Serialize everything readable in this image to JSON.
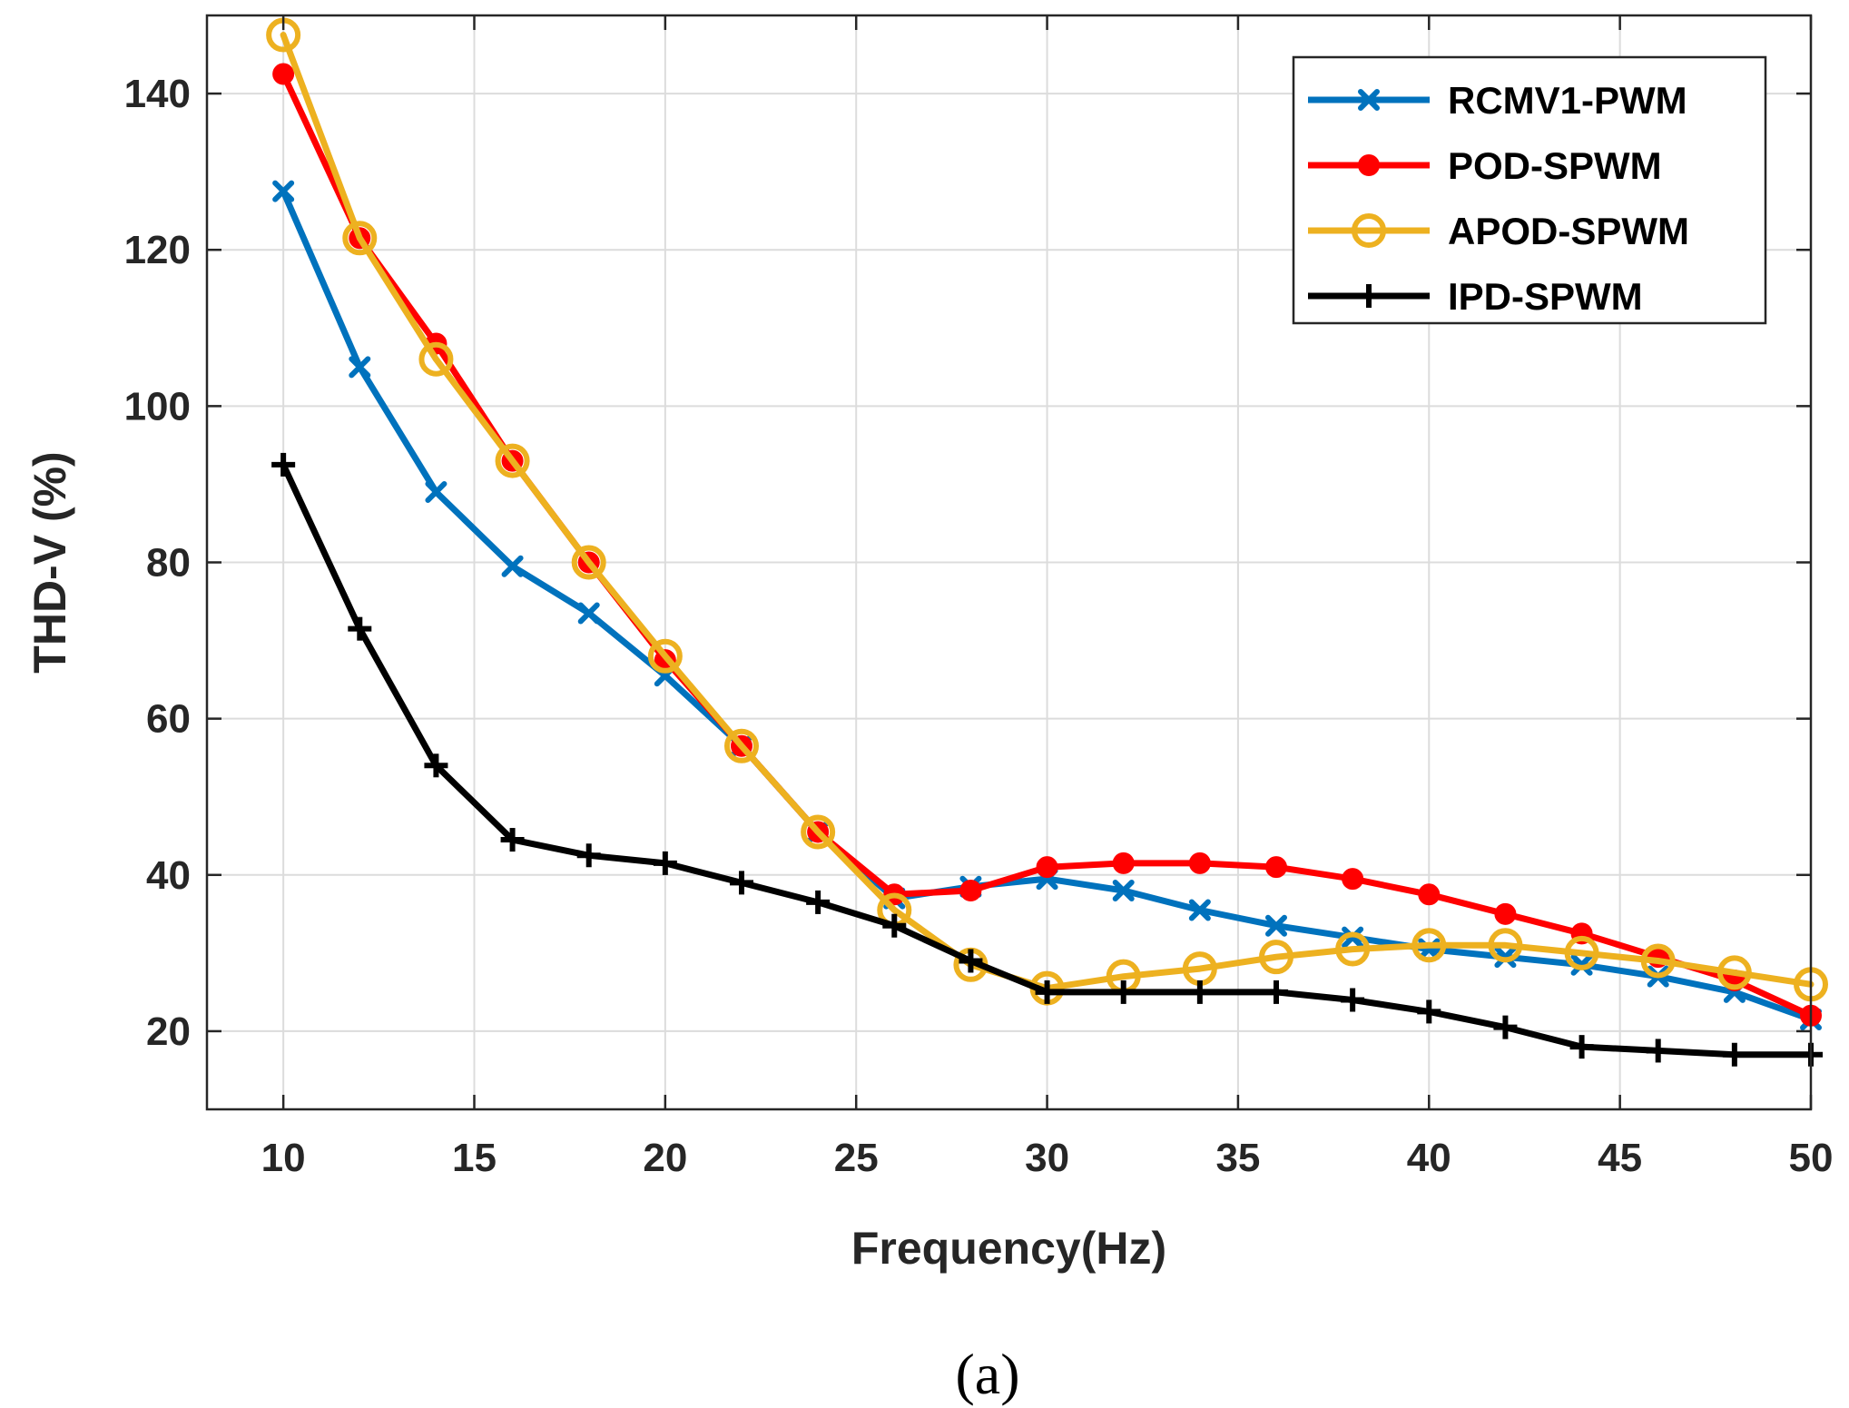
{
  "figure": {
    "caption": "(a)"
  },
  "chart_data": {
    "type": "line",
    "title": "",
    "xlabel": "Frequency(Hz)",
    "ylabel": "THD-V (%)",
    "xlim": [
      8,
      50
    ],
    "ylim": [
      10,
      150
    ],
    "xticks": [
      10,
      15,
      20,
      25,
      30,
      35,
      40,
      45,
      50
    ],
    "yticks": [
      20,
      40,
      60,
      80,
      100,
      120,
      140
    ],
    "grid": true,
    "legend_position": "top-right",
    "x": [
      10,
      12,
      14,
      16,
      18,
      20,
      22,
      24,
      26,
      28,
      30,
      32,
      34,
      36,
      38,
      40,
      42,
      44,
      46,
      48,
      50
    ],
    "series": [
      {
        "name": "RCMV1-PWM",
        "color": "#0072bd",
        "marker": "x",
        "values": [
          127.5,
          105,
          89,
          79.5,
          73.5,
          65.5,
          56.5,
          45.5,
          37,
          38.5,
          39.5,
          38,
          35.5,
          33.5,
          32,
          30.5,
          29.5,
          28.5,
          27,
          25,
          21.5
        ]
      },
      {
        "name": "POD-SPWM",
        "color": "#ff0000",
        "marker": "filled-circle",
        "values": [
          142.5,
          121.5,
          108,
          93,
          80,
          67.5,
          56.5,
          45.5,
          37.5,
          38,
          41,
          41.5,
          41.5,
          41,
          39.5,
          37.5,
          35,
          32.5,
          29.5,
          26.5,
          22
        ]
      },
      {
        "name": "APOD-SPWM",
        "color": "#edb120",
        "marker": "open-circle",
        "values": [
          147.5,
          121.5,
          106,
          93,
          80,
          68,
          56.5,
          45.5,
          35.5,
          28.5,
          25.5,
          27,
          28,
          29.5,
          30.5,
          31,
          31,
          30,
          29,
          27.5,
          26
        ]
      },
      {
        "name": "IPD-SPWM",
        "color": "#000000",
        "marker": "plus",
        "values": [
          92.5,
          71.5,
          54,
          44.5,
          42.5,
          41.5,
          39,
          36.5,
          33.5,
          29,
          25,
          25,
          25,
          25,
          24,
          22.5,
          20.5,
          18,
          17.5,
          17,
          17
        ]
      }
    ]
  }
}
